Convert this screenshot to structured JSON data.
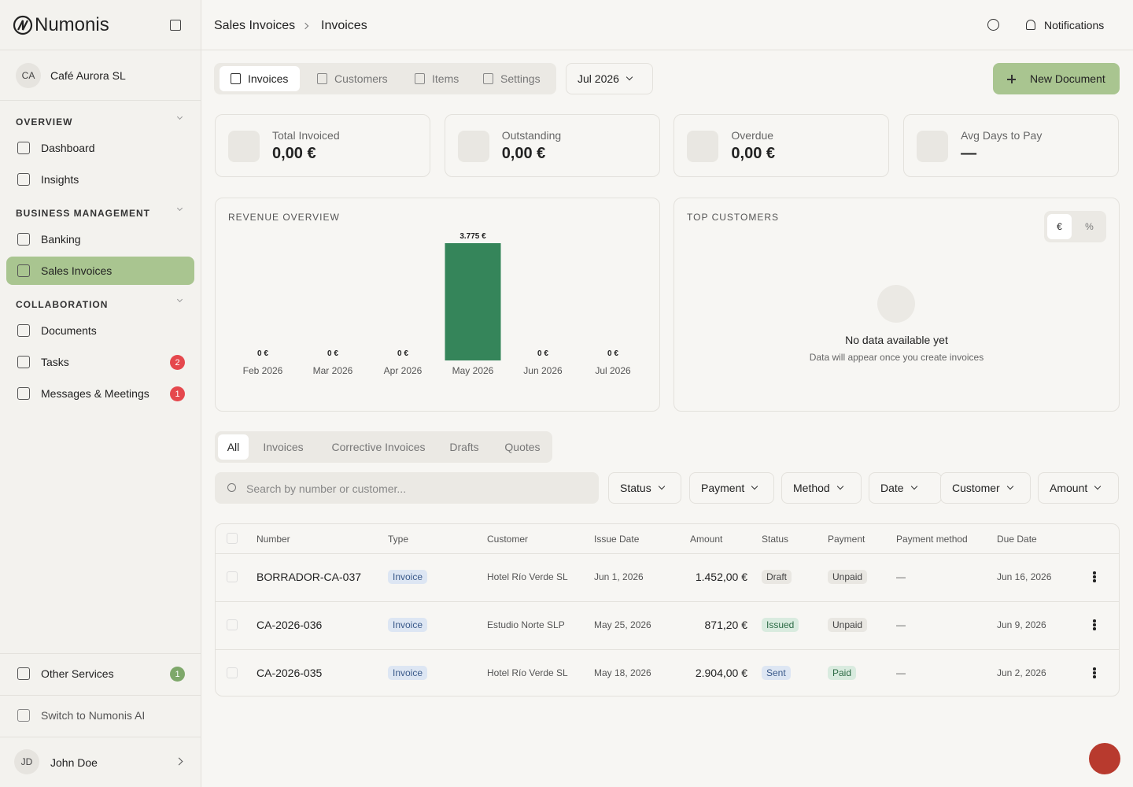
{
  "brand": "Numonis",
  "sidebar": {
    "company": {
      "initials": "CA",
      "name": "Café Aurora SL"
    },
    "sections": [
      {
        "title": "OVERVIEW",
        "items": [
          {
            "label": "Dashboard"
          },
          {
            "label": "Insights"
          }
        ]
      },
      {
        "title": "BUSINESS MANAGEMENT",
        "items": [
          {
            "label": "Banking"
          },
          {
            "label": "Sales Invoices"
          }
        ]
      },
      {
        "title": "COLLABORATION",
        "items": [
          {
            "label": "Documents"
          },
          {
            "label": "Tasks",
            "badge": 2
          },
          {
            "label": "Messages & Meetings",
            "badge": 1
          }
        ]
      }
    ],
    "other_services": {
      "label": "Other Services",
      "badge": 1
    },
    "switch_ai": "Switch to Numonis AI",
    "user": {
      "initials": "JD",
      "name": "John Doe"
    }
  },
  "header": {
    "breadcrumb": [
      "Sales Invoices",
      "Invoices"
    ],
    "notifications": "Notifications"
  },
  "tabs": [
    "Invoices",
    "Customers",
    "Items",
    "Settings"
  ],
  "period": "Jul 2026",
  "new_document": "New Document",
  "kpis": [
    {
      "label": "Total Invoiced",
      "value": "0,00 €"
    },
    {
      "label": "Outstanding",
      "value": "0,00 €"
    },
    {
      "label": "Overdue",
      "value": "0,00 €"
    },
    {
      "label": "Avg Days to Pay",
      "value": "—"
    }
  ],
  "revenue_overview": {
    "type": "bar",
    "title": "REVENUE OVERVIEW",
    "categories": [
      "Feb 2026",
      "Mar 2026",
      "Apr 2026",
      "May 2026",
      "Jun 2026",
      "Jul 2026"
    ],
    "values": [
      0,
      0,
      0,
      3775,
      0,
      0
    ],
    "value_labels": [
      "0 €",
      "0 €",
      "0 €",
      "3.775 €",
      "0 €",
      "0 €"
    ],
    "color": "#35855a"
  },
  "top_customers": {
    "title": "TOP CUSTOMERS",
    "toggle": [
      "€",
      "%"
    ],
    "empty_title": "No data available yet",
    "empty_text": "Data will appear once you create invoices"
  },
  "filter_tabs": [
    "All",
    "Invoices",
    "Corrective Invoices",
    "Drafts",
    "Quotes"
  ],
  "search_placeholder": "Search by number or customer...",
  "filters": [
    "Status",
    "Payment",
    "Method",
    "Date",
    "Customer",
    "Amount"
  ],
  "table": {
    "columns": [
      "Number",
      "Type",
      "Customer",
      "Issue Date",
      "Amount",
      "Status",
      "Payment",
      "Payment method",
      "Due Date"
    ],
    "rows": [
      [
        "BORRADOR-CA-037",
        "Invoice",
        "Hotel Río Verde SL",
        "Jun 1, 2026",
        "1.452,00 €",
        "Draft",
        "Unpaid",
        "—",
        "Jun 16, 2026"
      ],
      [
        "CA-2026-036",
        "Invoice",
        "Estudio Norte SLP",
        "May 25, 2026",
        "871,20 €",
        "Issued",
        "Unpaid",
        "—",
        "Jun 9, 2026"
      ],
      [
        "CA-2026-035",
        "Invoice",
        "Hotel Río Verde SL",
        "May 18, 2026",
        "2.904,00 €",
        "Sent",
        "Paid",
        "—",
        "Jun 2, 2026"
      ]
    ]
  }
}
